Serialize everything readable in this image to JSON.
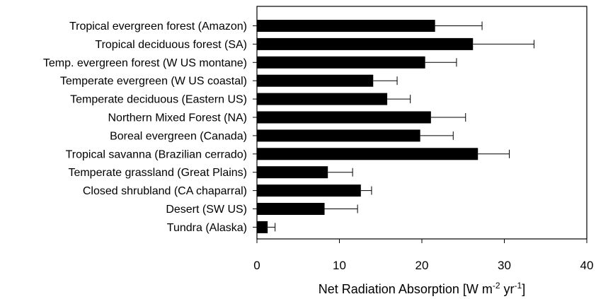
{
  "chart_data": {
    "type": "bar",
    "orientation": "horizontal",
    "categories": [
      "Tropical evergreen forest (Amazon)",
      "Tropical deciduous forest (SA)",
      "Temp. evergreen forest (W US montane)",
      "Temperate evergreen (W US coastal)",
      "Temperate deciduous (Eastern US)",
      "Northern Mixed Forest (NA)",
      "Boreal evergreen (Canada)",
      "Tropical savanna (Brazilian cerrado)",
      "Temperate grassland (Great Plains)",
      "Closed shrubland (CA chaparral)",
      "Desert (SW US)",
      "Tundra (Alaska)"
    ],
    "values": [
      21.6,
      26.2,
      20.4,
      14.1,
      15.8,
      21.1,
      19.8,
      26.8,
      8.6,
      12.6,
      8.2,
      1.3
    ],
    "error_plus": [
      5.7,
      7.4,
      3.8,
      2.9,
      2.8,
      4.2,
      4.0,
      3.8,
      3.0,
      1.3,
      4.0,
      0.9
    ],
    "xlim": [
      0,
      40
    ],
    "xticks": [
      0,
      10,
      20,
      30,
      40
    ],
    "xlabel_main": "Net Radiation Absorption  [W m",
    "xlabel_sup1": "-2",
    "xlabel_mid": " yr",
    "xlabel_sup2": "-1",
    "xlabel_end": "]",
    "ylabel": "",
    "title": "",
    "bar_color": "#000000",
    "error_bar_color": "#000000",
    "grid": false,
    "legend": "none"
  }
}
